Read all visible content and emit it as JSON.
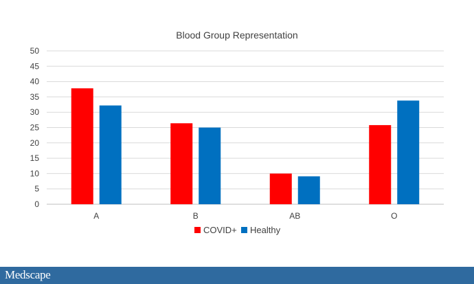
{
  "chart_data": {
    "type": "bar",
    "title": "Blood Group Representation",
    "categories": [
      "A",
      "B",
      "AB",
      "O"
    ],
    "series": [
      {
        "name": "COVID+",
        "color": "#ff0000",
        "values": [
          37.8,
          26.4,
          10.0,
          25.8
        ]
      },
      {
        "name": "Healthy",
        "color": "#0070c0",
        "values": [
          32.2,
          25.0,
          9.1,
          33.8
        ]
      }
    ],
    "ylim": [
      0,
      50
    ],
    "yticks": [
      0,
      5,
      10,
      15,
      20,
      25,
      30,
      35,
      40,
      45,
      50
    ],
    "grid": true,
    "legend_position": "bottom"
  },
  "footer": {
    "brand": "Medscape",
    "background": "#2f6a9f"
  }
}
